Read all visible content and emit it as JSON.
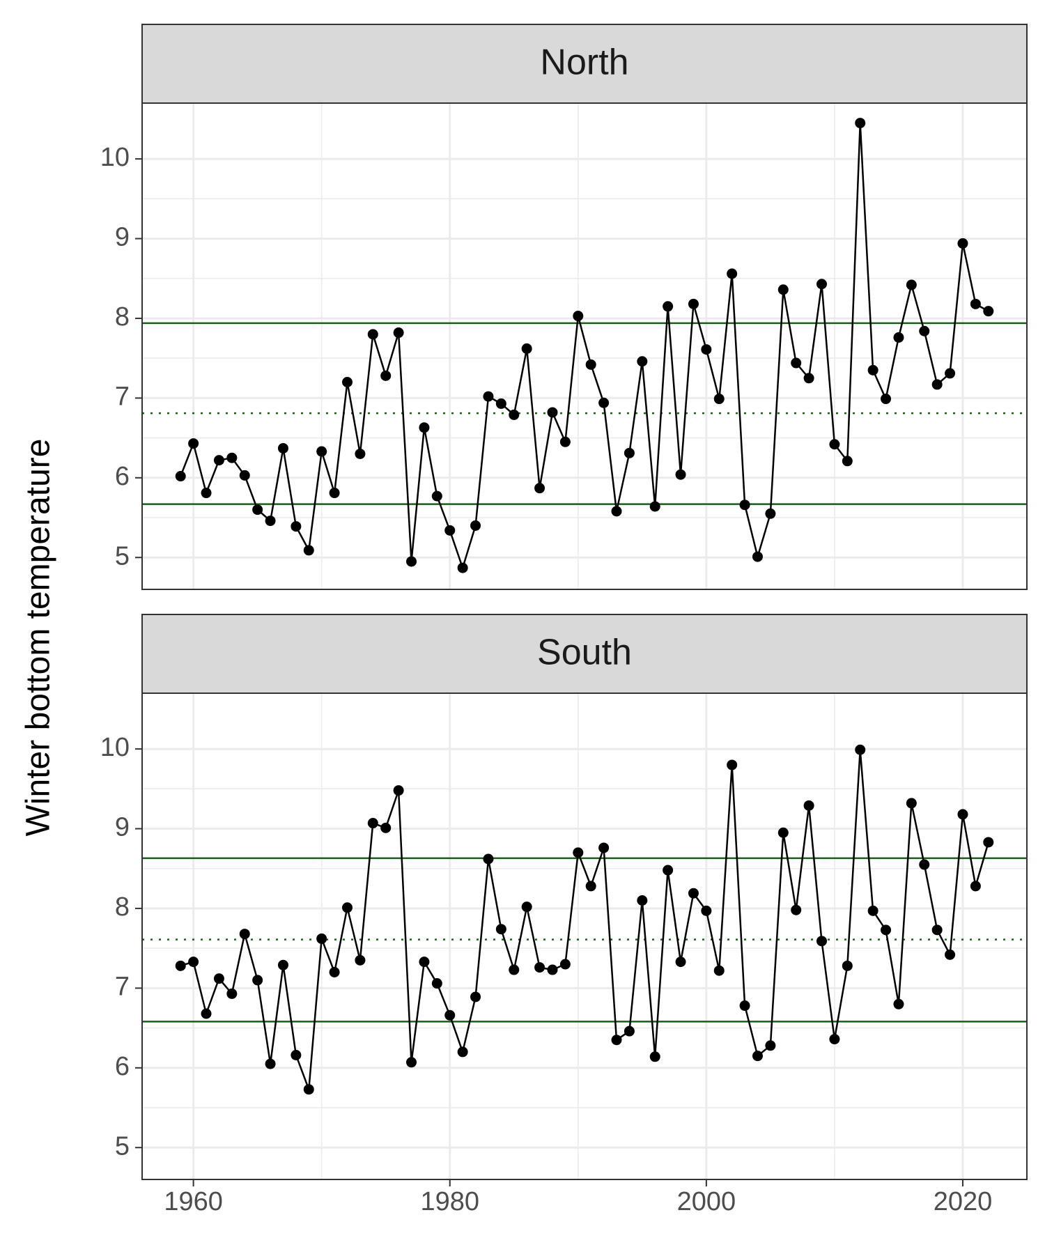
{
  "chart_data": {
    "type": "line",
    "ylabel": "Winter bottom temperature",
    "xlabel": "",
    "xlim": [
      1956,
      2025
    ],
    "ylim": [
      4.6,
      10.7
    ],
    "x_ticks": [
      1960,
      1980,
      2000,
      2020
    ],
    "x_tick_labels": [
      "1960",
      "1980",
      "2000",
      "2020"
    ],
    "y_ticks": [
      5,
      6,
      7,
      8,
      9,
      10
    ],
    "y_tick_labels": [
      "5",
      "6",
      "7",
      "8",
      "9",
      "10"
    ],
    "grid": true,
    "colors": {
      "series": "#000000",
      "reference": "#1a5e1a",
      "strip_fill": "#d9d9d9",
      "grid": "#ebebeb"
    },
    "x": [
      1959,
      1960,
      1961,
      1962,
      1963,
      1964,
      1965,
      1966,
      1967,
      1968,
      1969,
      1970,
      1971,
      1972,
      1973,
      1974,
      1975,
      1976,
      1977,
      1978,
      1979,
      1980,
      1981,
      1982,
      1983,
      1984,
      1985,
      1986,
      1987,
      1988,
      1989,
      1990,
      1991,
      1992,
      1993,
      1994,
      1995,
      1996,
      1997,
      1998,
      1999,
      2000,
      2001,
      2002,
      2003,
      2004,
      2005,
      2006,
      2007,
      2008,
      2009,
      2010,
      2011,
      2012,
      2013,
      2014,
      2015,
      2016,
      2017,
      2018,
      2019,
      2020,
      2021,
      2022
    ],
    "panels": [
      {
        "strip": "North",
        "values": [
          6.02,
          6.43,
          5.81,
          6.22,
          6.25,
          6.03,
          5.6,
          5.46,
          6.37,
          5.39,
          5.09,
          6.33,
          5.81,
          7.2,
          6.3,
          7.8,
          7.28,
          7.82,
          4.95,
          6.63,
          5.77,
          5.34,
          4.87,
          5.4,
          7.02,
          6.93,
          6.79,
          7.62,
          5.87,
          6.82,
          6.45,
          8.03,
          7.42,
          6.94,
          5.58,
          6.31,
          7.46,
          5.64,
          8.15,
          6.04,
          8.18,
          7.61,
          6.99,
          8.56,
          5.66,
          5.01,
          5.55,
          8.36,
          7.44,
          7.25,
          8.43,
          6.42,
          6.21,
          10.45,
          7.35,
          6.99,
          7.76,
          8.42,
          7.84,
          7.17,
          7.31,
          8.94,
          8.18,
          8.09
        ],
        "ref_lines": [
          {
            "y": 7.94,
            "style": "solid"
          },
          {
            "y": 6.81,
            "style": "dotted"
          },
          {
            "y": 5.67,
            "style": "solid"
          }
        ]
      },
      {
        "strip": "South",
        "values": [
          7.28,
          7.33,
          6.68,
          7.12,
          6.93,
          7.68,
          7.1,
          6.05,
          7.29,
          6.16,
          5.73,
          7.62,
          7.2,
          8.01,
          7.35,
          9.07,
          9.01,
          9.48,
          6.07,
          7.33,
          7.06,
          6.66,
          6.2,
          6.89,
          8.62,
          7.74,
          7.23,
          8.02,
          7.26,
          7.23,
          7.3,
          8.7,
          8.28,
          8.76,
          6.35,
          6.46,
          8.1,
          6.14,
          8.48,
          7.33,
          8.19,
          7.97,
          7.22,
          9.8,
          6.78,
          6.15,
          6.28,
          8.95,
          7.98,
          9.29,
          7.59,
          6.36,
          7.28,
          9.99,
          7.97,
          7.73,
          6.8,
          9.32,
          8.55,
          7.73,
          7.42,
          9.18,
          8.28,
          8.83
        ],
        "ref_lines": [
          {
            "y": 8.63,
            "style": "solid"
          },
          {
            "y": 7.61,
            "style": "dotted"
          },
          {
            "y": 6.58,
            "style": "solid"
          }
        ]
      }
    ]
  }
}
